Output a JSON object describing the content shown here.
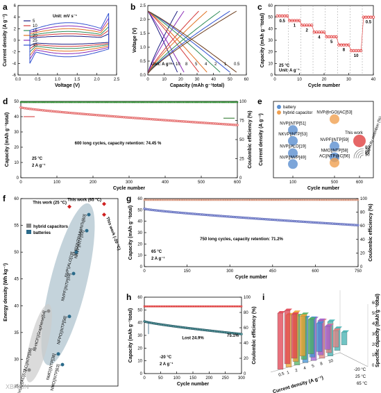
{
  "watermark": "XBRAIN",
  "panels": {
    "a": "a",
    "b": "b",
    "c": "c",
    "d": "d",
    "e": "e",
    "f": "f",
    "g": "g",
    "h": "h",
    "i": "i"
  },
  "chart_data": [
    {
      "id": "a",
      "type": "line",
      "xlabel": "Voltage (V)",
      "ylabel": "Current density (A g⁻¹)",
      "xlim": [
        0,
        2.5
      ],
      "ylim": [
        -6,
        6
      ],
      "xticks": [
        "0.0",
        "0.5",
        "1.0",
        "1.5",
        "2.0",
        "2.5"
      ],
      "yticks": [
        "-6",
        "-4",
        "-2",
        "0",
        "2",
        "4",
        "6"
      ],
      "legend_title": "Unit: mV s⁻¹",
      "legend": "top-left",
      "series": [
        {
          "name": "5",
          "color": "#1a1a80",
          "amp": 0.9
        },
        {
          "name": "10",
          "color": "#d43a3a",
          "amp": 1.4
        },
        {
          "name": "15",
          "color": "#2e8b57",
          "amp": 1.9
        },
        {
          "name": "20",
          "color": "#e07020",
          "amp": 2.5
        },
        {
          "name": "25",
          "color": "#8b2bb8",
          "amp": 3.1
        },
        {
          "name": "30",
          "color": "#3050d0",
          "amp": 3.8
        }
      ]
    },
    {
      "id": "b",
      "type": "line",
      "xlabel": "Capacity (mAh g⁻¹total)",
      "ylabel": "Voltage (V)",
      "xlim": [
        0,
        60
      ],
      "ylim": [
        0,
        2.5
      ],
      "xticks": [
        "0",
        "10",
        "20",
        "30",
        "40",
        "50",
        "60"
      ],
      "yticks": [
        "0.0",
        "0.5",
        "1.0",
        "1.5",
        "2.0",
        "2.5"
      ],
      "note": "Unit: A g⁻¹",
      "rate_labels": [
        "10",
        "8",
        "5",
        "4",
        "2",
        "1",
        "0.5"
      ],
      "series": [
        {
          "name": "10",
          "cap": 18,
          "color": "#1a1a80"
        },
        {
          "name": "8",
          "cap": 22,
          "color": "#8b2bb8"
        },
        {
          "name": "5",
          "cap": 31,
          "color": "#d43a3a"
        },
        {
          "name": "4",
          "cap": 36,
          "color": "#e07020"
        },
        {
          "name": "2",
          "cap": 44,
          "color": "#2e8b57"
        },
        {
          "name": "1",
          "cap": 50,
          "color": "#3050d0"
        },
        {
          "name": "0.5",
          "cap": 54,
          "color": "#6a3a1a"
        }
      ]
    },
    {
      "id": "c",
      "type": "scatter",
      "xlabel": "Cycle number",
      "ylabel": "Capacity (mAh g⁻¹total)",
      "xlim": [
        0,
        40
      ],
      "ylim": [
        0,
        60
      ],
      "xticks": [
        "0",
        "10",
        "20",
        "30",
        "40"
      ],
      "yticks": [
        "0",
        "10",
        "20",
        "30",
        "40",
        "50",
        "60"
      ],
      "note": "25 °C",
      "note2": "Unit: A g⁻¹",
      "segments": [
        {
          "label": "0.5",
          "from": 1,
          "to": 5,
          "value": 51
        },
        {
          "label": "1",
          "from": 6,
          "to": 10,
          "value": 47
        },
        {
          "label": "2",
          "from": 11,
          "to": 15,
          "value": 43
        },
        {
          "label": "4",
          "from": 16,
          "to": 20,
          "value": 37
        },
        {
          "label": "5",
          "from": 21,
          "to": 25,
          "value": 33
        },
        {
          "label": "8",
          "from": 26,
          "to": 30,
          "value": 26
        },
        {
          "label": "10",
          "from": 31,
          "to": 35,
          "value": 21
        },
        {
          "label": "0.5",
          "from": 36,
          "to": 40,
          "value": 50
        }
      ]
    },
    {
      "id": "d",
      "type": "scatter",
      "xlabel": "Cycle number",
      "ylabel": "Capacity (mAh g⁻¹total)",
      "y2label": "Coulombic efficiency (%)",
      "xlim": [
        0,
        600
      ],
      "ylim": [
        0,
        50
      ],
      "y2lim": [
        0,
        100
      ],
      "xticks": [
        "0",
        "100",
        "200",
        "300",
        "400",
        "500",
        "600"
      ],
      "yticks": [
        "0",
        "10",
        "20",
        "30",
        "40",
        "50"
      ],
      "y2ticks": [
        "0",
        "25",
        "50",
        "75",
        "100"
      ],
      "annotation": "600 long cycles, capacity retention: 74.45 %",
      "conditions": [
        "25 °C",
        "2 A g⁻¹"
      ],
      "capacity": {
        "start": 46,
        "end": 34.5
      },
      "efficiency": 99
    },
    {
      "id": "e",
      "type": "scatter",
      "xlabel": "Cycle number",
      "ylabel": "Current density (A g⁻¹)",
      "xticks": [
        "100",
        "500",
        "600"
      ],
      "legend": [
        {
          "name": "battery",
          "color": "#5b8fd0"
        },
        {
          "name": "hybrid capacitor",
          "color": "#f0a050"
        }
      ],
      "this_work": "This work",
      "points": [
        {
          "label": "NVP@rGO||AC[53]",
          "x": 500,
          "y": 5,
          "kind": "hybrid capacitor"
        },
        {
          "label": "NVP||NTP[51]",
          "x": 100,
          "y": 4.2,
          "kind": "battery"
        },
        {
          "label": "NKVP||NTP[53]",
          "x": 100,
          "y": 3.4,
          "kind": "battery"
        },
        {
          "label": "NVP||ALO[19]",
          "x": 100,
          "y": 2.5,
          "kind": "battery"
        },
        {
          "label": "NVP||NVP[49]",
          "x": 100,
          "y": 1.7,
          "kind": "battery"
        },
        {
          "label": "NVPF||NTP[59]",
          "x": 500,
          "y": 3,
          "kind": "battery"
        },
        {
          "label": "NMO||NTP[58]",
          "x": 500,
          "y": 2.2,
          "kind": "battery"
        },
        {
          "label": "AC||NTP@C[56]",
          "x": 500,
          "y": 1.8,
          "kind": "hybrid capacitor"
        },
        {
          "label": "This work",
          "x": 600,
          "y": 3.4,
          "kind": "this work"
        }
      ],
      "retention_label": "Capacity retention (%)",
      "retention_ticks": [
        "80",
        "70",
        "60",
        "50"
      ]
    },
    {
      "id": "f",
      "type": "scatter",
      "xlabel": "",
      "ylabel": "Energy density (Wh kg⁻¹)",
      "ylim": [
        25,
        60
      ],
      "yticks": [
        "25",
        "30",
        "35",
        "40",
        "45",
        "50",
        "55",
        "60"
      ],
      "legend": [
        {
          "name": "hybrid capacitors",
          "color": "#8a8a8a"
        },
        {
          "name": "batteries",
          "color": "#2a6a8a"
        }
      ],
      "points": [
        {
          "label": "This work (25 °C)",
          "y": 58.5,
          "group": "this"
        },
        {
          "label": "This work (65 °C)",
          "y": 59,
          "group": "this"
        },
        {
          "label": "This work (-20 °C)",
          "y": 57,
          "group": "this"
        },
        {
          "label": "NMO||NTP/MWNTs[60]",
          "y": 57,
          "group": "batteries"
        },
        {
          "label": "NKVP||NTP[53]",
          "y": 54,
          "group": "batteries"
        },
        {
          "label": "NVP||ALO[19]",
          "y": 50,
          "group": "batteries"
        },
        {
          "label": "NVPF||NTP[59]",
          "y": 46,
          "group": "batteries"
        },
        {
          "label": "NFPO||NTP[58]",
          "y": 38,
          "group": "batteries"
        },
        {
          "label": "NMO||NTP[38]",
          "y": 31,
          "group": "batteries"
        },
        {
          "label": "NMO||NTP[63]",
          "y": 29,
          "group": "batteries"
        },
        {
          "label": "Ni-HCF||Graphene[54]",
          "y": 39,
          "group": "hybrid capacitors"
        },
        {
          "label": "AC||NTP[56]",
          "y": 32,
          "group": "hybrid capacitors"
        },
        {
          "label": "NVOPF@rGO||AC[53]",
          "y": 28,
          "group": "hybrid capacitors"
        }
      ]
    },
    {
      "id": "g",
      "type": "scatter",
      "xlabel": "Cycle number",
      "ylabel": "Capacity (mAh g⁻¹total)",
      "y2label": "Coulombic efficiency (%)",
      "xlim": [
        0,
        750
      ],
      "ylim": [
        0,
        60
      ],
      "y2lim": [
        0,
        100
      ],
      "xticks": [
        "0",
        "150",
        "300",
        "450",
        "600",
        "750"
      ],
      "yticks": [
        "0",
        "10",
        "20",
        "30",
        "40",
        "50",
        "60"
      ],
      "y2ticks": [
        "0",
        "20",
        "40",
        "60",
        "80",
        "100"
      ],
      "annotation": "750 long cycles, capacity retention: 71.2%",
      "conditions": [
        "65 °C",
        "2 A g⁻¹"
      ],
      "capacity": {
        "start": 51,
        "end": 36.5
      },
      "efficiency": 98
    },
    {
      "id": "h",
      "type": "scatter",
      "xlabel": "Cycle number",
      "ylabel": "Capacity (mAh g⁻¹total)",
      "y2label": "Coulombic efficiency (%)",
      "xlim": [
        0,
        300
      ],
      "ylim": [
        0,
        60
      ],
      "y2lim": [
        0,
        100
      ],
      "xticks": [
        "0",
        "50",
        "100",
        "150",
        "200",
        "250",
        "300"
      ],
      "yticks": [
        "0",
        "10",
        "20",
        "30",
        "40",
        "50",
        "60"
      ],
      "y2ticks": [
        "0",
        "20",
        "40",
        "60",
        "80",
        "100"
      ],
      "annotation_lost": "Lost 24.9%",
      "annotation_ret": "75.1%",
      "conditions": [
        "-20 °C",
        "2 A g⁻¹"
      ],
      "capacity": {
        "start": 41,
        "end": 31
      },
      "efficiency": 88
    },
    {
      "id": "i",
      "type": "bar",
      "xlabel": "Current density (A g⁻¹)",
      "zlabel": "Specific capacity (mAh g⁻¹total)",
      "xticks": [
        "0.5",
        "1",
        "2",
        "4",
        "5",
        "8",
        "10"
      ],
      "zticks": [
        "0",
        "10",
        "20",
        "30",
        "40",
        "50",
        "60"
      ],
      "temperatures": [
        "65 °C",
        "25 °C",
        "-20 °C"
      ],
      "series": [
        {
          "name": "65 °C",
          "values": [
            54,
            50,
            47,
            43,
            40,
            36,
            33
          ]
        },
        {
          "name": "25 °C",
          "values": [
            51,
            47,
            43,
            37,
            33,
            26,
            21
          ]
        },
        {
          "name": "-20 °C",
          "values": [
            42,
            38,
            33,
            27,
            22,
            16,
            12
          ]
        }
      ],
      "colors": [
        "#e04050",
        "#f0a030",
        "#50b060",
        "#4090d0",
        "#a060d0",
        "#e08080",
        "#40b0b0"
      ]
    }
  ]
}
